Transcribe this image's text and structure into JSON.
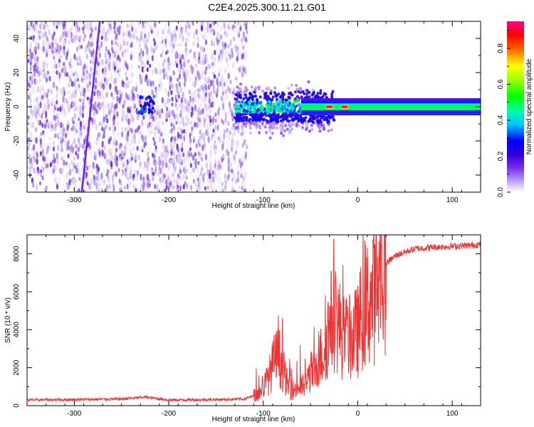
{
  "title": "C2E4.2025.300.11.21.G01",
  "chart_data": [
    {
      "type": "heatmap",
      "xlabel": "Height of straight line (km)",
      "ylabel": "Frequency (Hz)",
      "xlim": [
        -350,
        130
      ],
      "ylim": [
        -50,
        50
      ],
      "xticks": [
        -300,
        -200,
        -100,
        0,
        100
      ],
      "yticks": [
        -40,
        -20,
        0,
        20,
        40
      ],
      "colorbar": {
        "label": "Normalized spectral amplitude",
        "range": [
          0.0,
          0.95
        ],
        "ticks": [
          0.0,
          0.2,
          0.4,
          0.6,
          0.8
        ],
        "colors": [
          "#ffffff",
          "#a070f0",
          "#5000d0",
          "#0000ff",
          "#00ffff",
          "#00ff00",
          "#ffff00",
          "#ff0000",
          "#ff00a0"
        ]
      },
      "features": [
        {
          "name": "noise_band",
          "x_range": [
            -350,
            -125
          ],
          "freq_range": [
            -50,
            50
          ],
          "amplitude": 0.05
        },
        {
          "name": "sloped_line",
          "points": [
            [
              -292,
              -50
            ],
            [
              -273,
              50
            ]
          ],
          "amplitude": 0.15
        },
        {
          "name": "blob_near_-225",
          "x_range": [
            -232,
            -215
          ],
          "freq_center": 1,
          "amplitude": 0.3
        },
        {
          "name": "transition_cluster",
          "x_range": [
            -130,
            -25
          ],
          "freq_center": 0,
          "amplitude": 0.4
        },
        {
          "name": "main_carrier",
          "x_range": [
            -60,
            130
          ],
          "freq_center": 0,
          "amplitude": 0.5
        },
        {
          "name": "peak_points",
          "x": [
            -30,
            -14
          ],
          "freq": 0,
          "amplitude": 0.9
        }
      ]
    },
    {
      "type": "line",
      "xlabel": "Height of straight line (km)",
      "ylabel": "SNR (10 * v/v)",
      "xlim": [
        -350,
        130
      ],
      "ylim": [
        0,
        9000
      ],
      "xticks": [
        -300,
        -200,
        -100,
        0,
        100
      ],
      "yticks": [
        0,
        2000,
        4000,
        6000,
        8000
      ],
      "series": [
        {
          "name": "SNR",
          "color": "#ee3333",
          "x": [
            -350,
            -300,
            -250,
            -225,
            -200,
            -150,
            -120,
            -105,
            -95,
            -88,
            -84,
            -80,
            -75,
            -70,
            -65,
            -60,
            -55,
            -50,
            -45,
            -40,
            -35,
            -30,
            -25,
            -20,
            -15,
            -10,
            -5,
            0,
            5,
            10,
            15,
            20,
            25,
            30,
            40,
            50,
            60,
            80,
            100,
            120,
            130
          ],
          "y": [
            300,
            320,
            350,
            450,
            300,
            320,
            350,
            600,
            1400,
            2400,
            2600,
            2100,
            1200,
            800,
            900,
            1000,
            1100,
            1800,
            1600,
            2500,
            3000,
            4200,
            4800,
            4200,
            3600,
            3500,
            3700,
            3900,
            5000,
            5400,
            5600,
            6200,
            7000,
            7500,
            7900,
            8100,
            8250,
            8350,
            8400,
            8450,
            8500
          ]
        }
      ]
    }
  ]
}
